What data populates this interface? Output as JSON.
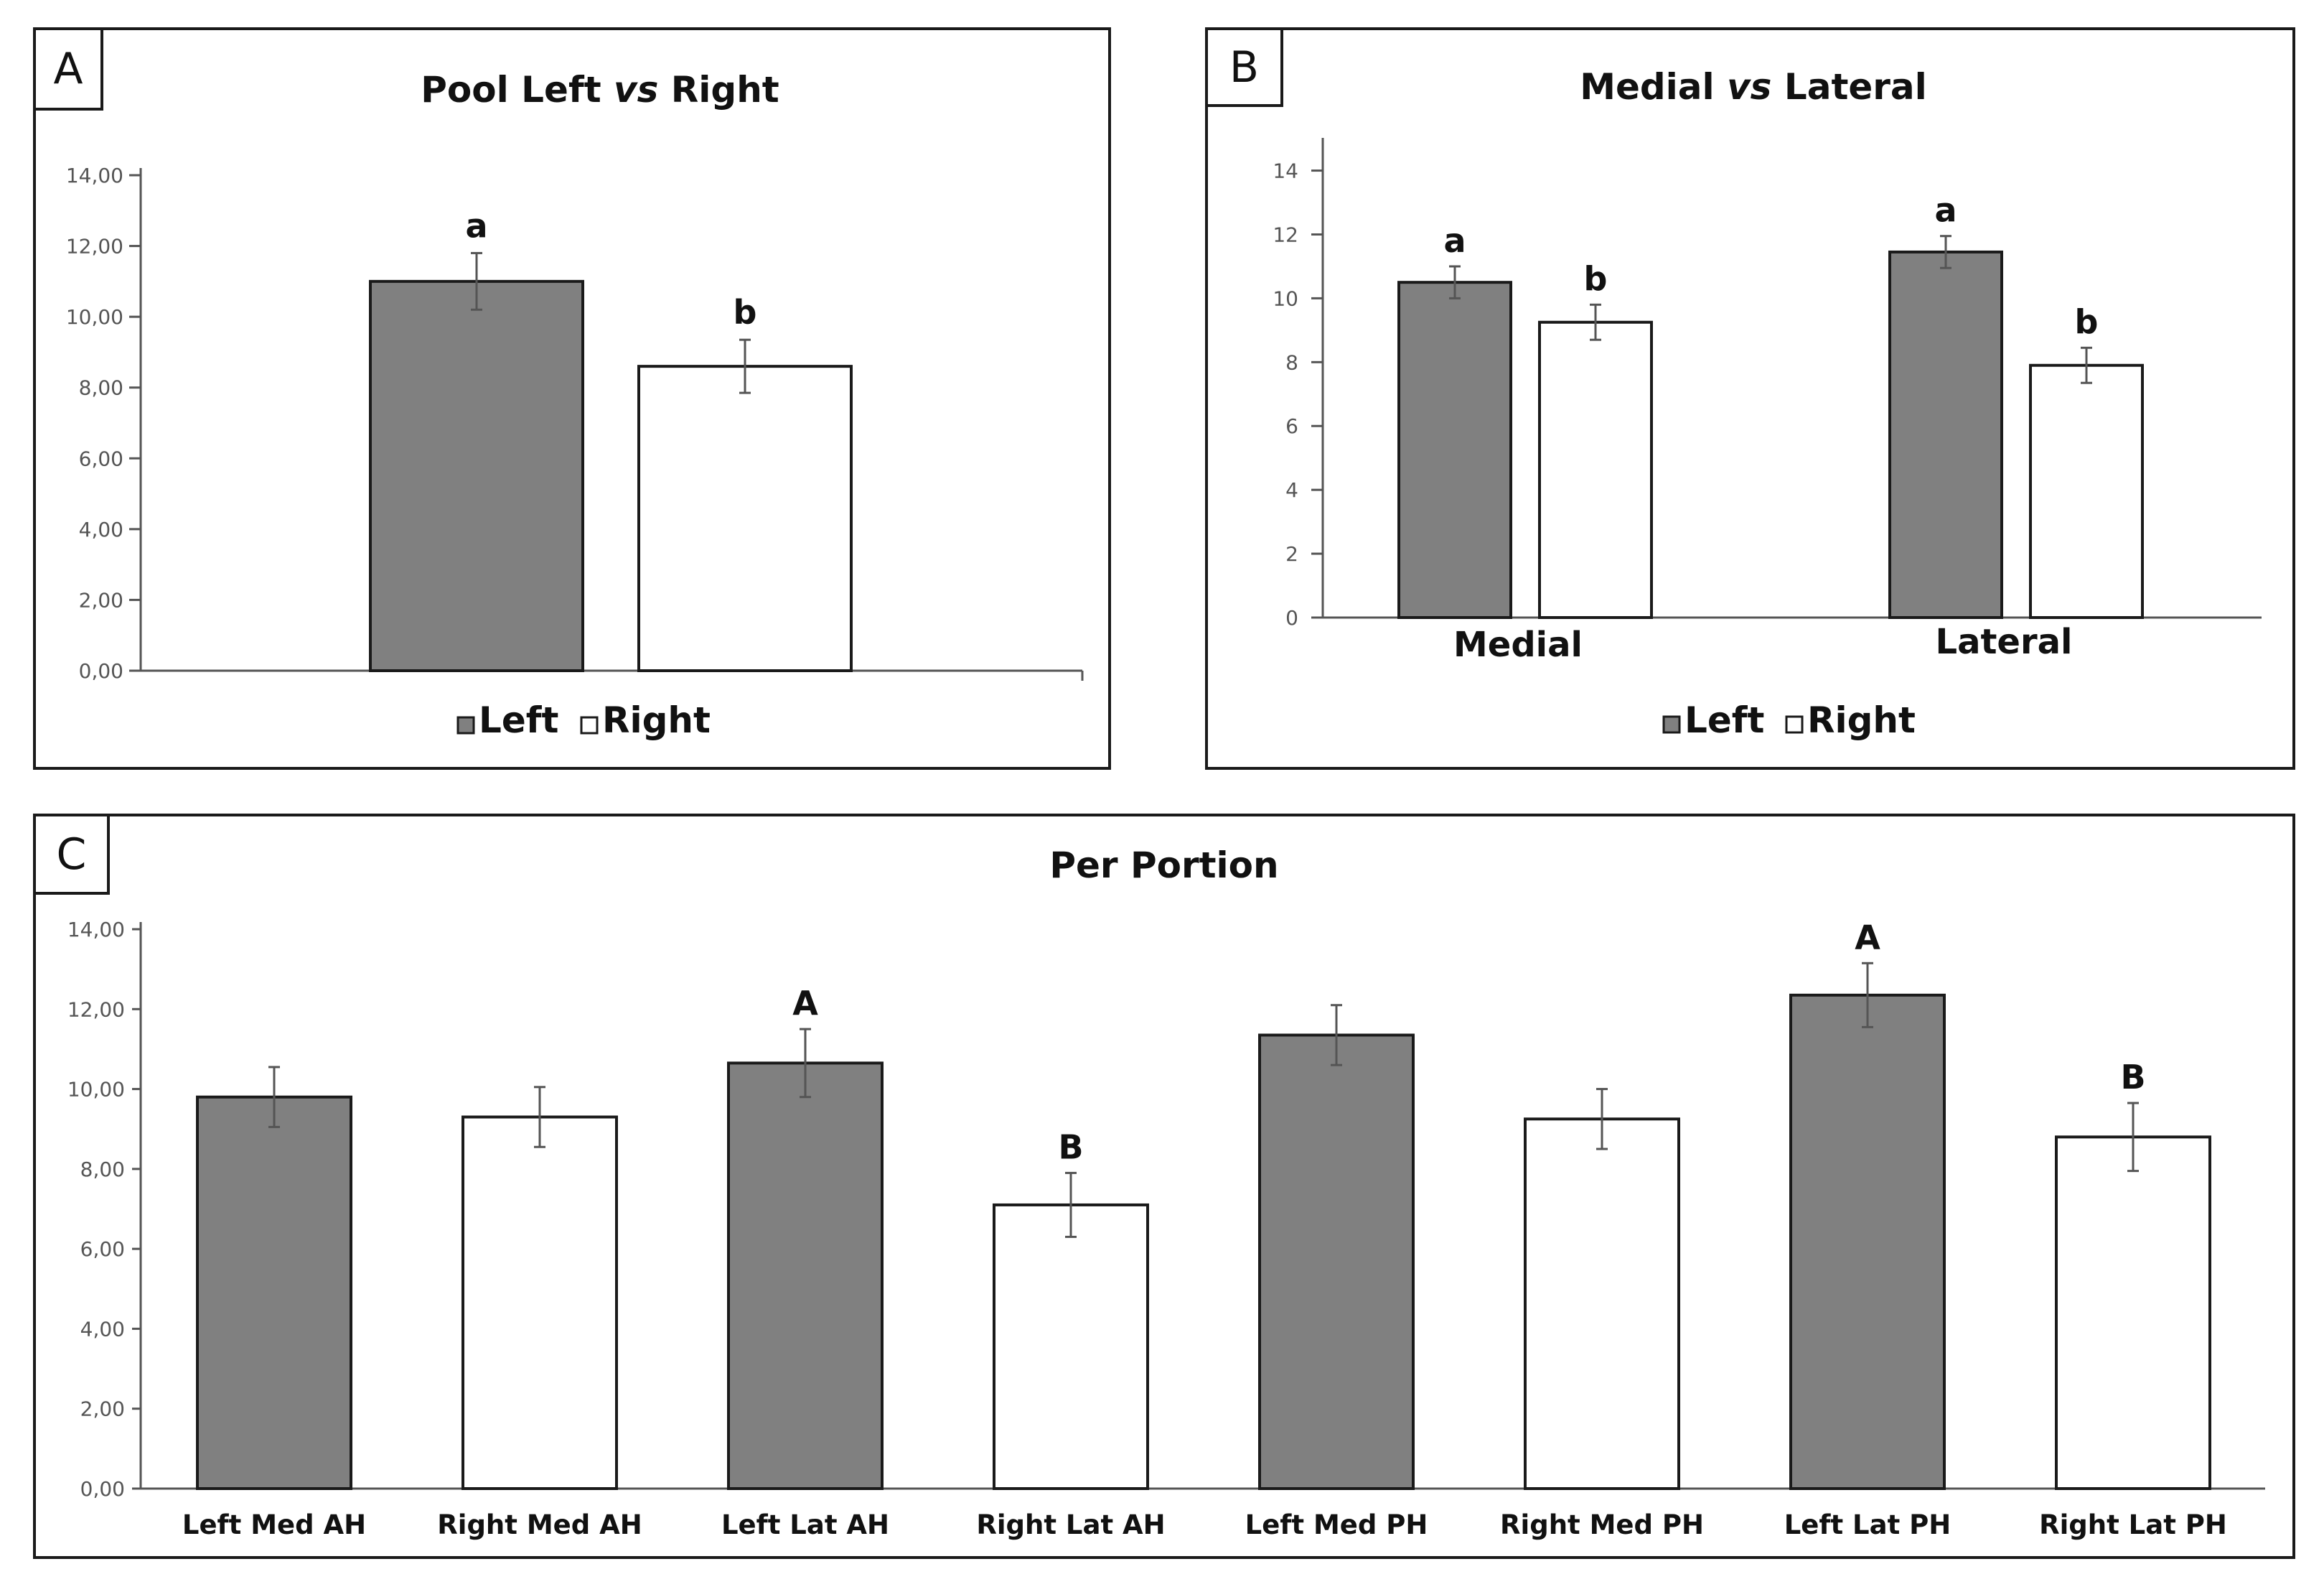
{
  "colors": {
    "left": "#808080",
    "right": "#ffffff",
    "stroke": "#1a1a1a",
    "axis": "#555555",
    "error": "#555555"
  },
  "legend": {
    "left": "Left",
    "right": "Right"
  },
  "panels": {
    "A": {
      "letter": "A",
      "title_parts": [
        "Pool Left ",
        "vs",
        " Right"
      ]
    },
    "B": {
      "letter": "B",
      "title_parts": [
        "Medial ",
        "vs",
        " Lateral"
      ]
    },
    "C": {
      "letter": "C",
      "title": "Per Portion"
    }
  },
  "chart_data": [
    {
      "panel": "A",
      "type": "bar",
      "title": "Pool Left vs Right",
      "categories": [
        "Left",
        "Right"
      ],
      "values": [
        11.0,
        8.6
      ],
      "errors": [
        0.8,
        0.75
      ],
      "significance": [
        "a",
        "b"
      ],
      "yticks": [
        "0,00",
        "2,00",
        "4,00",
        "6,00",
        "8,00",
        "10,00",
        "12,00",
        "14,00"
      ],
      "ylim": [
        0,
        14
      ],
      "legend": [
        "Left",
        "Right"
      ],
      "legend_position": "bottom"
    },
    {
      "panel": "B",
      "type": "bar",
      "title": "Medial vs Lateral",
      "categories": [
        "Medial",
        "Lateral"
      ],
      "series": [
        {
          "name": "Left",
          "values": [
            10.5,
            11.45
          ],
          "errors": [
            0.5,
            0.5
          ],
          "significance": [
            "a",
            "a"
          ]
        },
        {
          "name": "Right",
          "values": [
            9.25,
            7.9
          ],
          "errors": [
            0.55,
            0.55
          ],
          "significance": [
            "b",
            "b"
          ]
        }
      ],
      "yticks": [
        "0",
        "2",
        "4",
        "6",
        "8",
        "10",
        "12",
        "14"
      ],
      "ylim": [
        0,
        14.8
      ],
      "legend": [
        "Left",
        "Right"
      ],
      "legend_position": "bottom"
    },
    {
      "panel": "C",
      "type": "bar",
      "title": "Per Portion",
      "categories": [
        "Left Med AH",
        "Right Med AH",
        "Left Lat AH",
        "Right Lat AH",
        "Left Med PH",
        "Right Med PH",
        "Left Lat PH",
        "Right Lat PH"
      ],
      "values": [
        9.8,
        9.3,
        10.65,
        7.1,
        11.35,
        9.25,
        12.35,
        8.8
      ],
      "errors": [
        0.75,
        0.75,
        0.85,
        0.8,
        0.75,
        0.75,
        0.8,
        0.85
      ],
      "series_of_bar": [
        "Left",
        "Right",
        "Left",
        "Right",
        "Left",
        "Right",
        "Left",
        "Right"
      ],
      "significance": [
        "",
        "",
        "A",
        "B",
        "",
        "",
        "A",
        "B"
      ],
      "yticks": [
        "0,00",
        "2,00",
        "4,00",
        "6,00",
        "8,00",
        "10,00",
        "12,00",
        "14,00"
      ],
      "ylim": [
        0,
        14
      ]
    }
  ]
}
